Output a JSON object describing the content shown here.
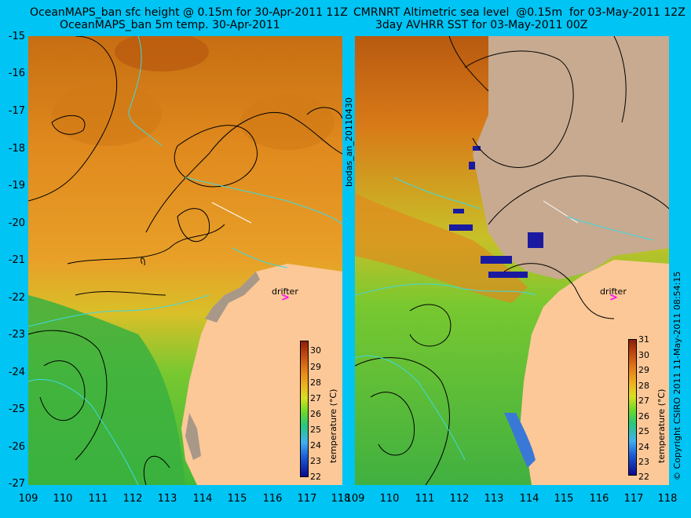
{
  "left": {
    "title_line1": "OceanMAPS_ban sfc height @ 0.15m for 30-Apr-2011 11Z",
    "title_line2": "OceanMAPS_ban 5m temp. 30-Apr-2011"
  },
  "right": {
    "title_line1": "CMRNRT Altimetric sea level  @0.15m  for 03-May-2011 12Z",
    "title_line2": "3day AVHRR SST for 03-May-2011 00Z"
  },
  "y_ticks": [
    "-15",
    "-16",
    "-17",
    "-18",
    "-19",
    "-20",
    "-21",
    "-22",
    "-23",
    "-24",
    "-25",
    "-26",
    "-27"
  ],
  "x_ticks": [
    "109",
    "110",
    "111",
    "112",
    "113",
    "114",
    "115",
    "116",
    "117",
    "118"
  ],
  "left_colorbar_ticks": [
    "30",
    "29",
    "28",
    "27",
    "26",
    "25",
    "24",
    "23",
    "22"
  ],
  "right_colorbar_ticks": [
    "31",
    "30",
    "29",
    "28",
    "27",
    "26",
    "25",
    "24",
    "23",
    "22"
  ],
  "colorbar_title": "temperature (°C)",
  "drifter_label": "drifter",
  "drifter_marker": ">",
  "center_vertical_text": "bodas_an_20110430",
  "right_vertical_text": "© Copyright CSIRO 2011   11-May-2011 08:54:15"
}
